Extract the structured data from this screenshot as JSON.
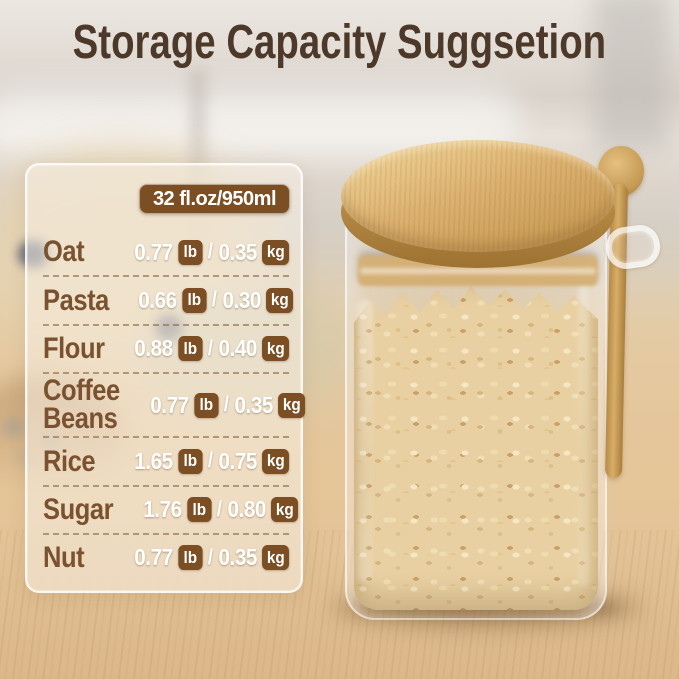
{
  "title": "Storage Capacity Suggsetion",
  "panel": {
    "capacity_badge": "32 fl.oz/950ml",
    "separator": "/",
    "units": {
      "lb": "lb",
      "kg": "kg"
    },
    "rows": [
      {
        "label": "Oat",
        "lb": "0.77",
        "kg": "0.35"
      },
      {
        "label": "Pasta",
        "lb": "0.66",
        "kg": "0.30"
      },
      {
        "label": "Flour",
        "lb": "0.88",
        "kg": "0.40"
      },
      {
        "label": "Coffee Beans",
        "lb": "0.77",
        "kg": "0.35"
      },
      {
        "label": "Rice",
        "lb": "1.65",
        "kg": "0.75"
      },
      {
        "label": "Sugar",
        "lb": "1.76",
        "kg": "0.80"
      },
      {
        "label": "Nut",
        "lb": "0.77",
        "kg": "0.35"
      }
    ]
  },
  "colors": {
    "accent_brown": "#7c4e23",
    "title_brown": "#4c392a",
    "label_brown": "#7a5230",
    "bamboo": "#deb372",
    "wood_table": "#e2c296"
  }
}
